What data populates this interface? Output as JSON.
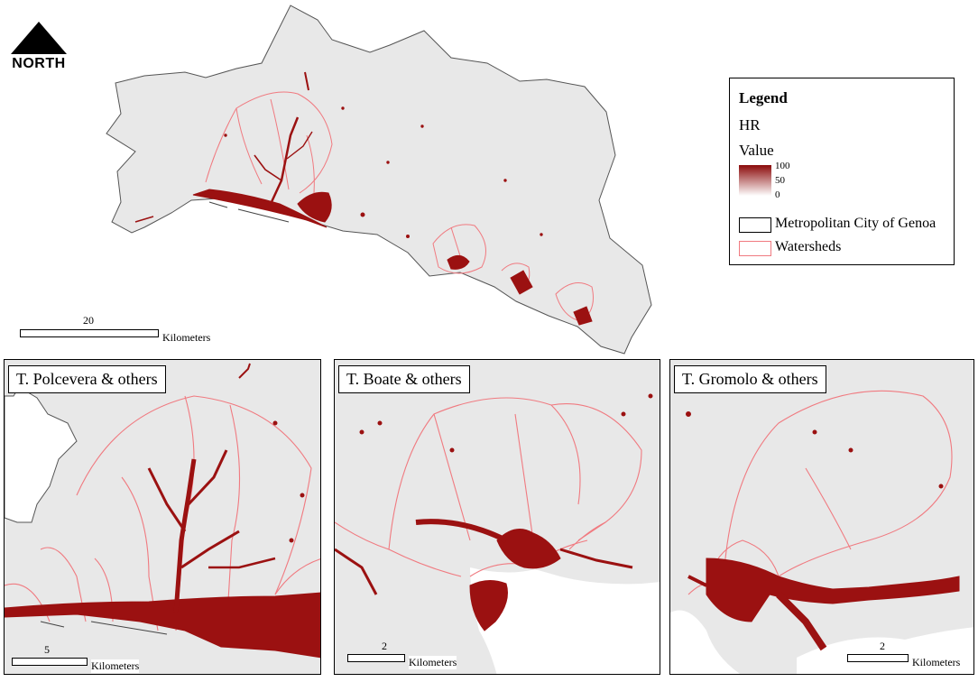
{
  "north_arrow": {
    "label": "NORTH"
  },
  "legend": {
    "title": "Legend",
    "layer_name": "HR",
    "value_label": "Value",
    "ramp_ticks": [
      "100",
      "50",
      "0"
    ],
    "ramp_colors": {
      "high": "#8b0a0a",
      "low": "#ffffff"
    },
    "items": [
      {
        "label": "Metropolitan City of Genoa",
        "stroke": "#000000"
      },
      {
        "label": "Watersheds",
        "stroke": "#f07a80"
      }
    ]
  },
  "main_map": {
    "scale_value": "20",
    "scale_unit": "Kilometers"
  },
  "panels": [
    {
      "title": "T. Polcevera & others",
      "scale_value": "5",
      "scale_unit": "Kilometers"
    },
    {
      "title": "T. Boate & others",
      "scale_value": "2",
      "scale_unit": "Kilometers"
    },
    {
      "title": "T. Gromolo & others",
      "scale_value": "2",
      "scale_unit": "Kilometers"
    }
  ],
  "colors": {
    "land": "#e8e8e8",
    "hazard": "#9b1111",
    "watershed": "#f07a80",
    "boundary": "#555555"
  }
}
